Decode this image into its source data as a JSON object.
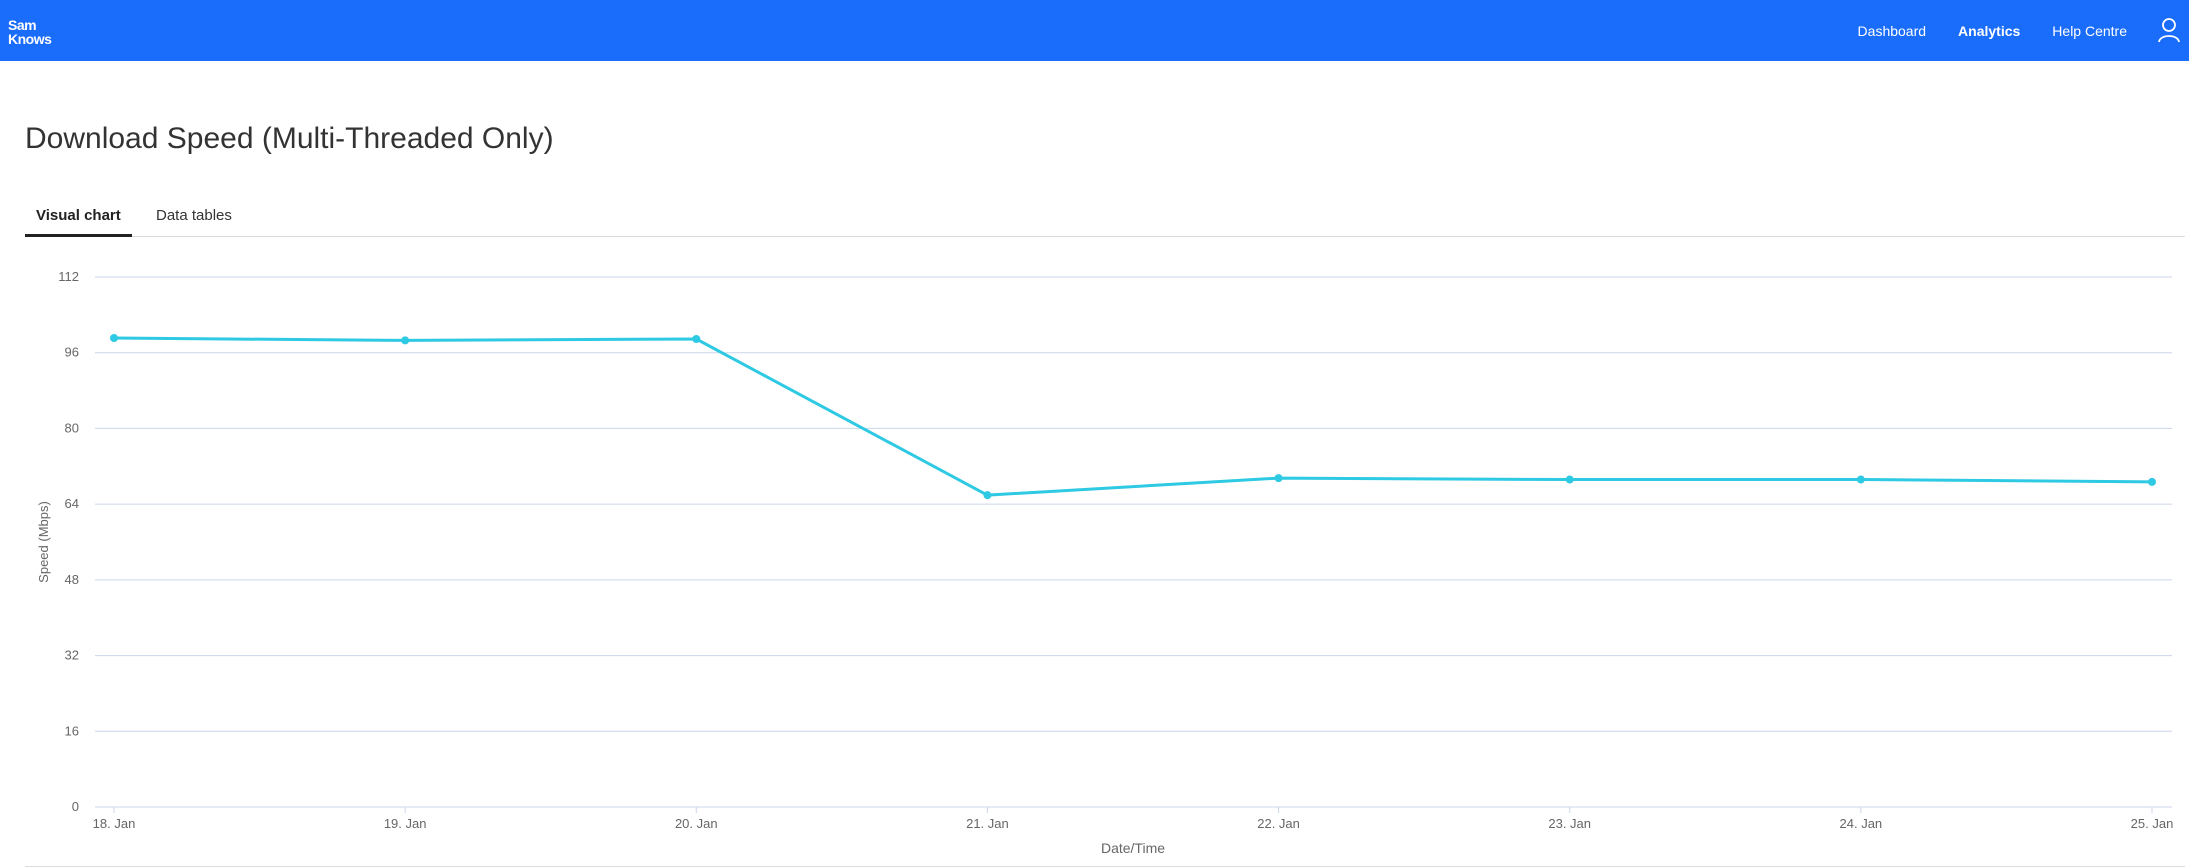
{
  "header": {
    "logo_line1": "Sam",
    "logo_line2": "Knows",
    "nav": [
      {
        "label": "Dashboard",
        "active": false
      },
      {
        "label": "Analytics",
        "active": true
      },
      {
        "label": "Help Centre",
        "active": false
      }
    ],
    "user_icon": "user-icon"
  },
  "page": {
    "title": "Download Speed (Multi-Threaded Only)"
  },
  "tabs": [
    {
      "label": "Visual chart",
      "active": true
    },
    {
      "label": "Data tables",
      "active": false
    }
  ],
  "colors": {
    "brand": "#1a6cfa",
    "series": "#2ec9e3",
    "grid": "#ccd6eb"
  },
  "chart_data": {
    "type": "line",
    "title": "",
    "xlabel": "Date/Time",
    "ylabel": "Speed (Mbps)",
    "ylim": [
      0,
      112
    ],
    "yticks": [
      0,
      16,
      32,
      48,
      64,
      80,
      96,
      112
    ],
    "categories": [
      "18. Jan",
      "19. Jan",
      "20. Jan",
      "21. Jan",
      "22. Jan",
      "23. Jan",
      "24. Jan",
      "25. Jan"
    ],
    "series": [
      {
        "values": [
          99.1,
          98.6,
          98.9,
          65.9,
          69.5,
          69.2,
          69.2,
          68.7
        ]
      }
    ],
    "grid": true,
    "legend": "none"
  }
}
